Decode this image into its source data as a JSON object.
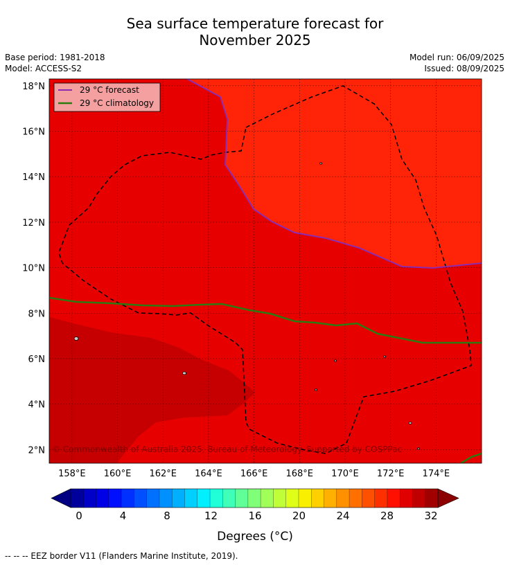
{
  "title_line1": "Sea surface temperature forecast for",
  "title_line2": "November 2025",
  "meta_left": {
    "base_period": "Base period: 1981-2018",
    "model": "Model: ACCESS-S2"
  },
  "meta_right": {
    "model_run": "Model run: 06/09/2025",
    "issued": "Issued: 08/09/2025"
  },
  "map": {
    "lon_range": [
      157.0,
      176.0
    ],
    "lat_range": [
      1.4,
      18.3
    ],
    "lon_ticks": [
      "158°E",
      "160°E",
      "162°E",
      "164°E",
      "166°E",
      "168°E",
      "170°E",
      "172°E",
      "174°E"
    ],
    "lat_ticks": [
      "2°N",
      "4°N",
      "6°N",
      "8°N",
      "10°N",
      "12°N",
      "14°N",
      "16°N",
      "18°N"
    ],
    "legend": [
      {
        "label": "29 °C  forecast",
        "color": "#8b2bb0"
      },
      {
        "label": "29 °C  climatology",
        "color": "#2d7a10"
      }
    ],
    "copyright": "© Commonwealth of Australia 2025, Bureau of Meteorology. Supported by COSPPac",
    "region_colors": {
      "above_29": "#ff2408",
      "mid": "#e60000",
      "below": "#c60000"
    }
  },
  "colorbar": {
    "ticks": [
      "0",
      "4",
      "8",
      "12",
      "16",
      "20",
      "24",
      "28",
      "32"
    ],
    "label": "Degrees (°C)",
    "colors": [
      "#00009c",
      "#0000c8",
      "#0000e6",
      "#0010ff",
      "#0030ff",
      "#0050ff",
      "#0070ff",
      "#0090ff",
      "#00b0ff",
      "#00d0ff",
      "#00f0ff",
      "#20ffd8",
      "#40ffb8",
      "#60ff98",
      "#80ff78",
      "#a0ff58",
      "#c0ff38",
      "#e0ff18",
      "#f8f000",
      "#ffd000",
      "#ffb000",
      "#ff9000",
      "#ff7000",
      "#ff5000",
      "#ff3000",
      "#ff1000",
      "#e00000",
      "#c00000",
      "#a00000"
    ],
    "under_color": "#000080",
    "over_color": "#8b0000"
  },
  "footnote": "--  --  -- EEZ border V11 (Flanders Marine Institute, 2019)."
}
